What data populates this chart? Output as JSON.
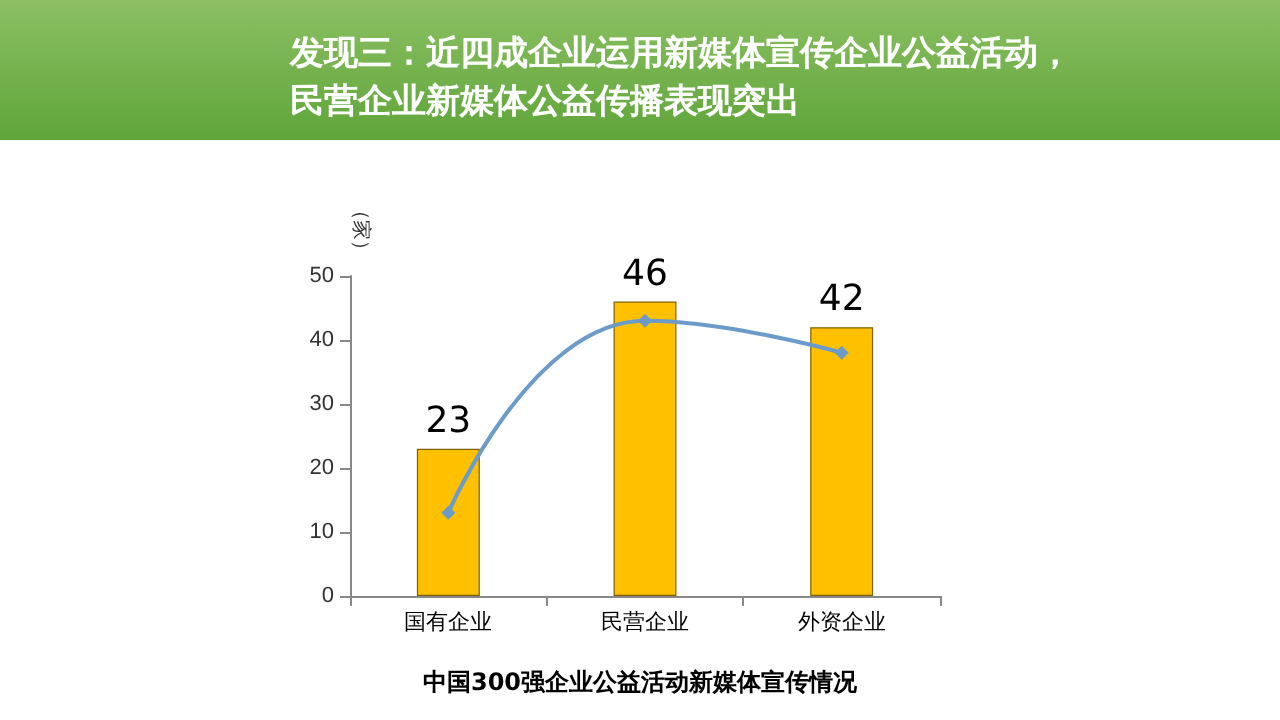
{
  "chart_data": {
    "type": "bar",
    "title": "发现三：近四成企业运用新媒体宣传企业公益活动，民营企业新媒体公益传播表现突出",
    "ylabel": "（家）",
    "annotations": [
      "中国300强企业公益活动新媒体宣传情况"
    ],
    "categories": [
      "国有企业",
      "民营企业",
      "外资企业"
    ],
    "series": [
      {
        "color": "#ffc000",
        "values": [
          23,
          46,
          42
        ]
      },
      {
        "type": "line",
        "color": "#6b9bc9",
        "values": [
          13,
          43,
          38
        ],
        "marker": "diamond",
        "data_labels": false
      }
    ],
    "data_labels": true,
    "ylim": [
      0,
      50
    ],
    "yticks": [
      0,
      10,
      20,
      30,
      40,
      50
    ],
    "grid": false
  }
}
